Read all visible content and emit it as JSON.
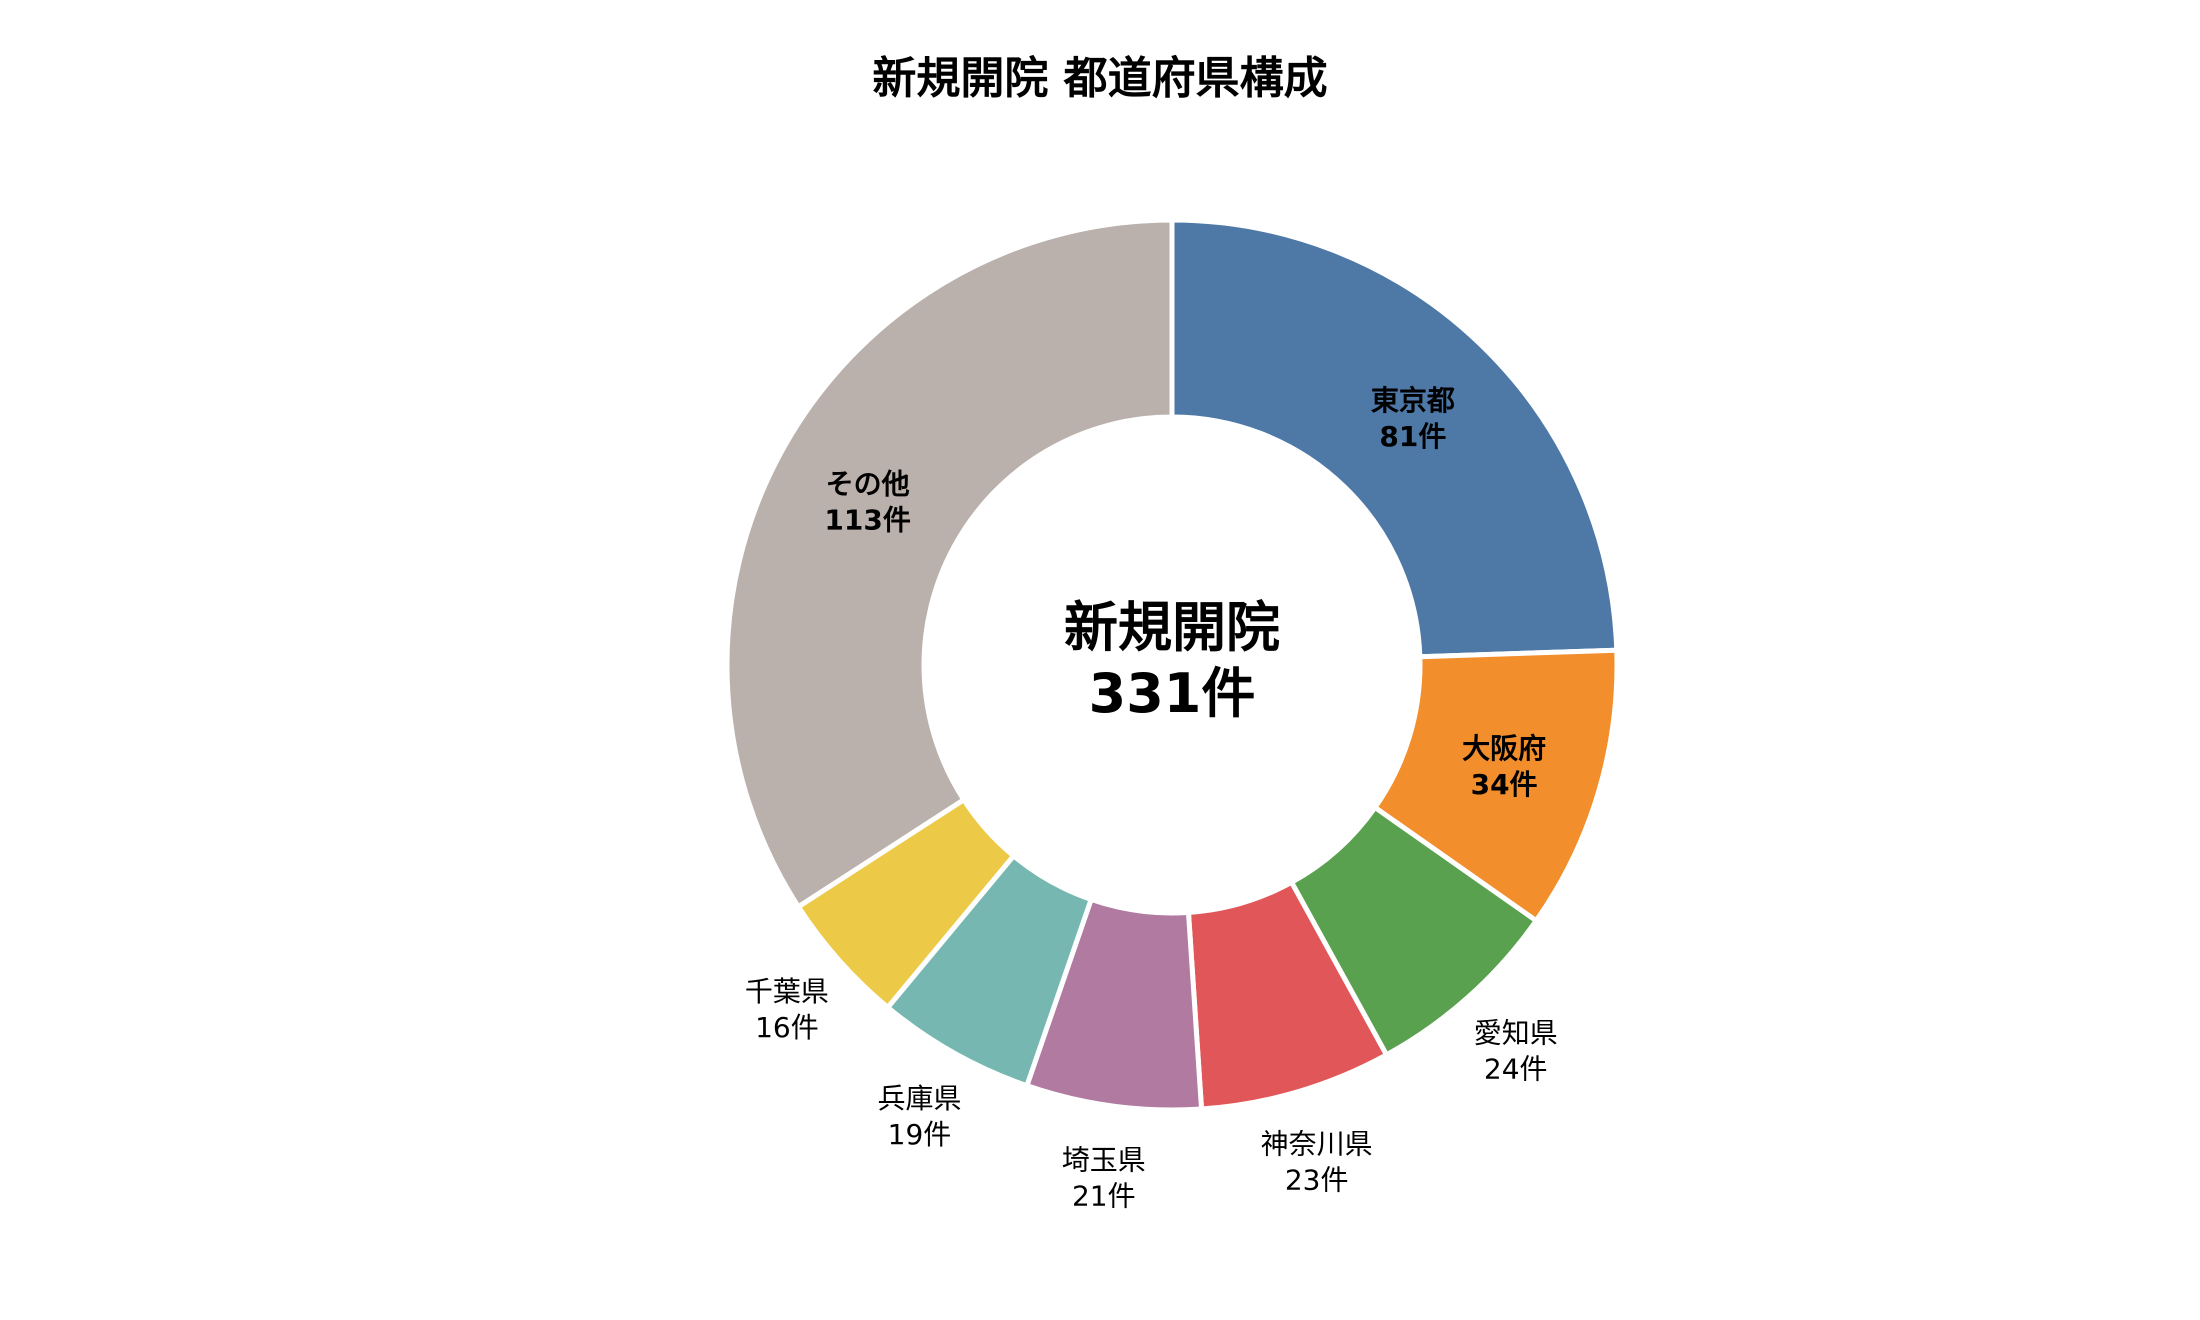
{
  "chart_data": {
    "type": "pie",
    "title": "新規開院 都道府県構成",
    "center_label": [
      "新規開院",
      "331件"
    ],
    "total": 331,
    "categories": [
      "東京都",
      "大阪府",
      "愛知県",
      "神奈川県",
      "埼玉県",
      "兵庫県",
      "千葉県",
      "その他"
    ],
    "values": [
      81,
      34,
      24,
      23,
      21,
      19,
      16,
      113
    ],
    "value_labels": [
      "81件",
      "34件",
      "24件",
      "23件",
      "21件",
      "19件",
      "16件",
      "113件"
    ],
    "colors": [
      "#4e79a7",
      "#f28e2b",
      "#59a14f",
      "#e15759",
      "#b07aa1",
      "#76b7b2",
      "#edc948",
      "#bab0ac"
    ],
    "label_bold": [
      true,
      true,
      false,
      false,
      false,
      false,
      false,
      true
    ],
    "legend": "none",
    "direction": "clockwise from 12 o'clock"
  }
}
